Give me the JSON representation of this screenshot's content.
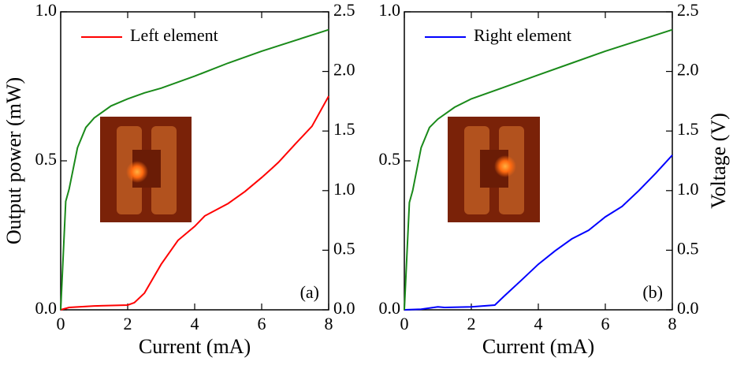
{
  "chart_data": [
    {
      "type": "line",
      "x_label": "Current (mA)",
      "y_label": "Output power (mW)",
      "annotation": "(a)",
      "legend": "upper left",
      "xlim": [
        0,
        8
      ],
      "xticks": [
        0,
        2,
        4,
        6,
        8
      ],
      "ylim": [
        0,
        1
      ],
      "yticks": [
        {
          "value": 0,
          "label": "0.0"
        },
        0.5,
        {
          "value": 1,
          "label": "1.0"
        }
      ],
      "y2lim": [
        0,
        2.5
      ],
      "y2ticks": [
        {
          "value": 0,
          "label": "0.0"
        },
        0.5,
        {
          "value": 1,
          "label": "1.0"
        },
        1.5,
        {
          "value": 2,
          "label": "2.0"
        },
        2.5
      ],
      "series": [
        {
          "name": "Left element",
          "color": "#ff0000",
          "x": [
            0,
            0.25,
            1,
            2,
            2.2,
            2.5,
            3,
            3.5,
            4,
            4.3,
            4.7,
            5,
            5.5,
            6,
            6.3,
            6.5,
            7,
            7.5,
            8
          ],
          "values": [
            0,
            0.008,
            0.013,
            0.016,
            0.024,
            0.056,
            0.153,
            0.233,
            0.28,
            0.315,
            0.339,
            0.357,
            0.397,
            0.444,
            0.474,
            0.495,
            0.556,
            0.616,
            0.717
          ]
        },
        {
          "color": "#1a8a1a",
          "axis": "y2",
          "x": [
            0,
            0.15,
            0.25,
            0.5,
            0.75,
            1,
            1.5,
            2,
            2.5,
            3,
            4,
            5,
            6,
            7,
            8
          ],
          "values": [
            0,
            0.91,
            1.01,
            1.36,
            1.53,
            1.61,
            1.71,
            1.77,
            1.82,
            1.86,
            1.96,
            2.07,
            2.17,
            2.26,
            2.35
          ]
        }
      ]
    },
    {
      "type": "line",
      "x_label": "Current (mA)",
      "y2_label": "Voltage (V)",
      "annotation": "(b)",
      "legend": "upper left",
      "xlim": [
        0,
        8
      ],
      "xticks": [
        0,
        2,
        4,
        6,
        8
      ],
      "ylim": [
        0,
        1
      ],
      "yticks": [
        {
          "value": 0,
          "label": "0.0"
        },
        0.5,
        {
          "value": 1,
          "label": "1.0"
        }
      ],
      "y2lim": [
        0,
        2.5
      ],
      "y2ticks": [
        {
          "value": 0,
          "label": "0.0"
        },
        0.5,
        {
          "value": 1,
          "label": "1.0"
        },
        1.5,
        {
          "value": 2,
          "label": "2.0"
        },
        2.5
      ],
      "series": [
        {
          "name": "Right element",
          "color": "#0000ff",
          "x": [
            0,
            0.5,
            1,
            1.2,
            2,
            2.7,
            3,
            3.5,
            4,
            4.5,
            5,
            5.5,
            6,
            6.5,
            7,
            7.5,
            8
          ],
          "values": [
            0,
            0.002,
            0.01,
            0.008,
            0.01,
            0.016,
            0.048,
            0.1,
            0.153,
            0.198,
            0.238,
            0.267,
            0.312,
            0.347,
            0.4,
            0.458,
            0.519
          ]
        },
        {
          "color": "#1a8a1a",
          "axis": "y2",
          "x": [
            0,
            0.15,
            0.25,
            0.5,
            0.75,
            1,
            1.5,
            2,
            3,
            4,
            5,
            6,
            7,
            8
          ],
          "values": [
            0,
            0.9,
            1.0,
            1.36,
            1.53,
            1.6,
            1.7,
            1.77,
            1.87,
            1.97,
            2.07,
            2.17,
            2.26,
            2.35
          ]
        }
      ]
    }
  ]
}
